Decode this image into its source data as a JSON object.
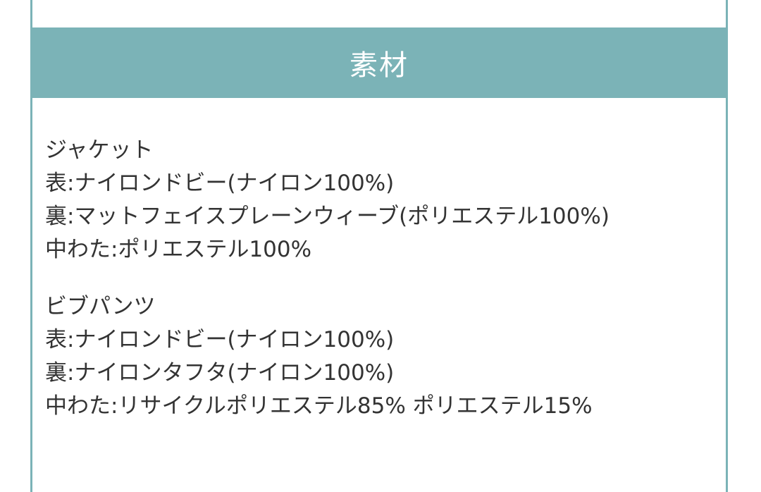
{
  "section": {
    "title": "素材",
    "groups": [
      {
        "name": "ジャケット",
        "lines": [
          "表:ナイロンドビー(ナイロン100%)",
          "裏:マットフェイスプレーンウィーブ(ポリエステル100%)",
          "中わた:ポリエステル100%"
        ]
      },
      {
        "name": "ビブパンツ",
        "lines": [
          "表:ナイロンドビー(ナイロン100%)",
          "裏:ナイロンタフタ(ナイロン100%)",
          "中わた:リサイクルポリエステル85% ポリエステル15%"
        ]
      }
    ]
  },
  "colors": {
    "accent": "#7bb3b7",
    "text": "#333333"
  }
}
